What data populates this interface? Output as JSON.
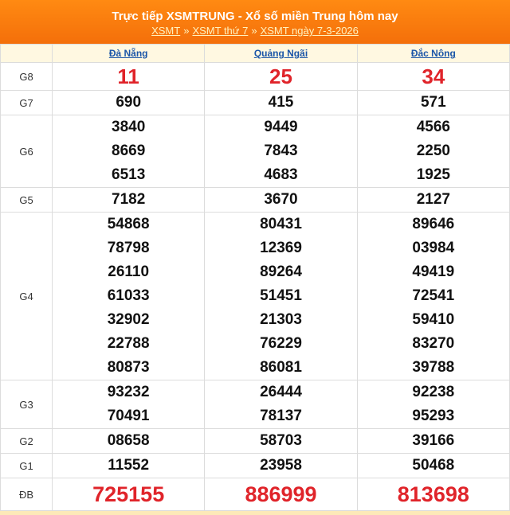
{
  "header": {
    "title": "Trực tiếp XSMTRUNG - Xổ số miền Trung hôm nay",
    "links": [
      "XSMT",
      "XSMT thứ 7",
      "XSMT ngày 7-3-2026"
    ],
    "separator": "»"
  },
  "table": {
    "columns": [
      "Đà Nẵng",
      "Quảng Ngãi",
      "Đắc Nông"
    ],
    "rows": [
      {
        "label": "G8",
        "cells": [
          [
            "11"
          ],
          [
            "25"
          ],
          [
            "34"
          ]
        ]
      },
      {
        "label": "G7",
        "cells": [
          [
            "690"
          ],
          [
            "415"
          ],
          [
            "571"
          ]
        ]
      },
      {
        "label": "G6",
        "cells": [
          [
            "3840",
            "8669",
            "6513"
          ],
          [
            "9449",
            "7843",
            "4683"
          ],
          [
            "4566",
            "2250",
            "1925"
          ]
        ]
      },
      {
        "label": "G5",
        "cells": [
          [
            "7182"
          ],
          [
            "3670"
          ],
          [
            "2127"
          ]
        ]
      },
      {
        "label": "G4",
        "cells": [
          [
            "54868",
            "78798",
            "26110",
            "61033",
            "32902",
            "22788",
            "80873"
          ],
          [
            "80431",
            "12369",
            "89264",
            "51451",
            "21303",
            "76229",
            "86081"
          ],
          [
            "89646",
            "03984",
            "49419",
            "72541",
            "59410",
            "83270",
            "39788"
          ]
        ]
      },
      {
        "label": "G3",
        "cells": [
          [
            "93232",
            "70491"
          ],
          [
            "26444",
            "78137"
          ],
          [
            "92238",
            "95293"
          ]
        ]
      },
      {
        "label": "G2",
        "cells": [
          [
            "08658"
          ],
          [
            "58703"
          ],
          [
            "39166"
          ]
        ]
      },
      {
        "label": "G1",
        "cells": [
          [
            "11552"
          ],
          [
            "23958"
          ],
          [
            "50468"
          ]
        ]
      },
      {
        "label": "ĐB",
        "cells": [
          [
            "725155"
          ],
          [
            "886999"
          ],
          [
            "813698"
          ]
        ]
      }
    ]
  }
}
